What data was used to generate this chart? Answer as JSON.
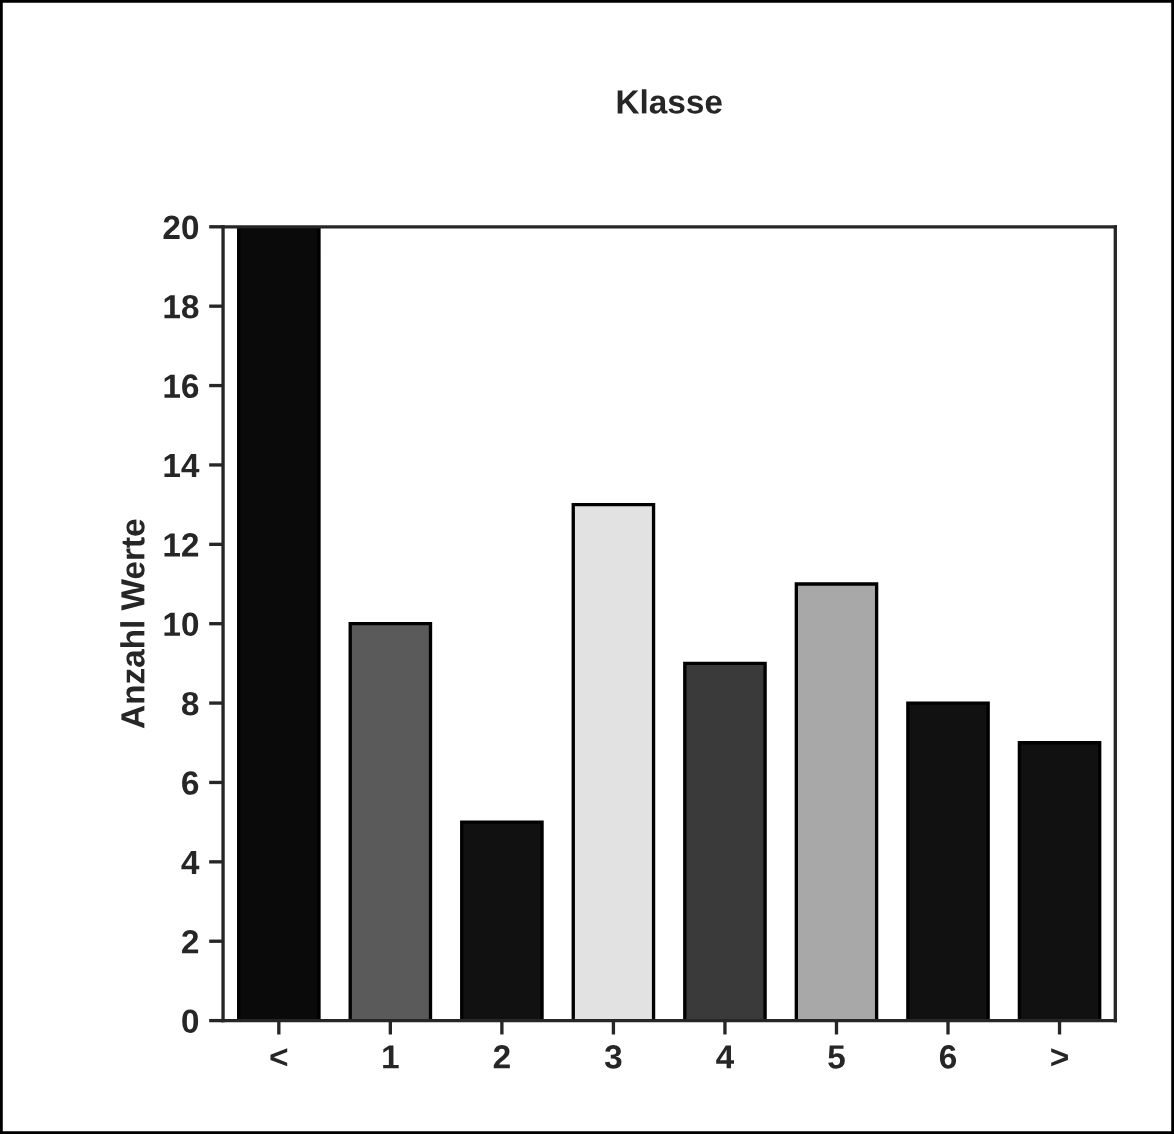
{
  "chart_data": {
    "type": "bar",
    "title": "Klasse",
    "ylabel": "Anzahl Werte",
    "categories": [
      "<",
      "1",
      "2",
      "3",
      "4",
      "5",
      "6",
      ">"
    ],
    "values": [
      20,
      10,
      5,
      13,
      9,
      11,
      8,
      7
    ],
    "colors": [
      "#0a0a0a",
      "#5a5a5a",
      "#111111",
      "#e2e2e2",
      "#3a3a3a",
      "#a8a8a8",
      "#111111",
      "#111111"
    ],
    "ylim": [
      0,
      20
    ],
    "yticks": [
      0,
      2,
      4,
      6,
      8,
      10,
      12,
      14,
      16,
      18,
      20
    ],
    "grid": false,
    "legend": false
  }
}
